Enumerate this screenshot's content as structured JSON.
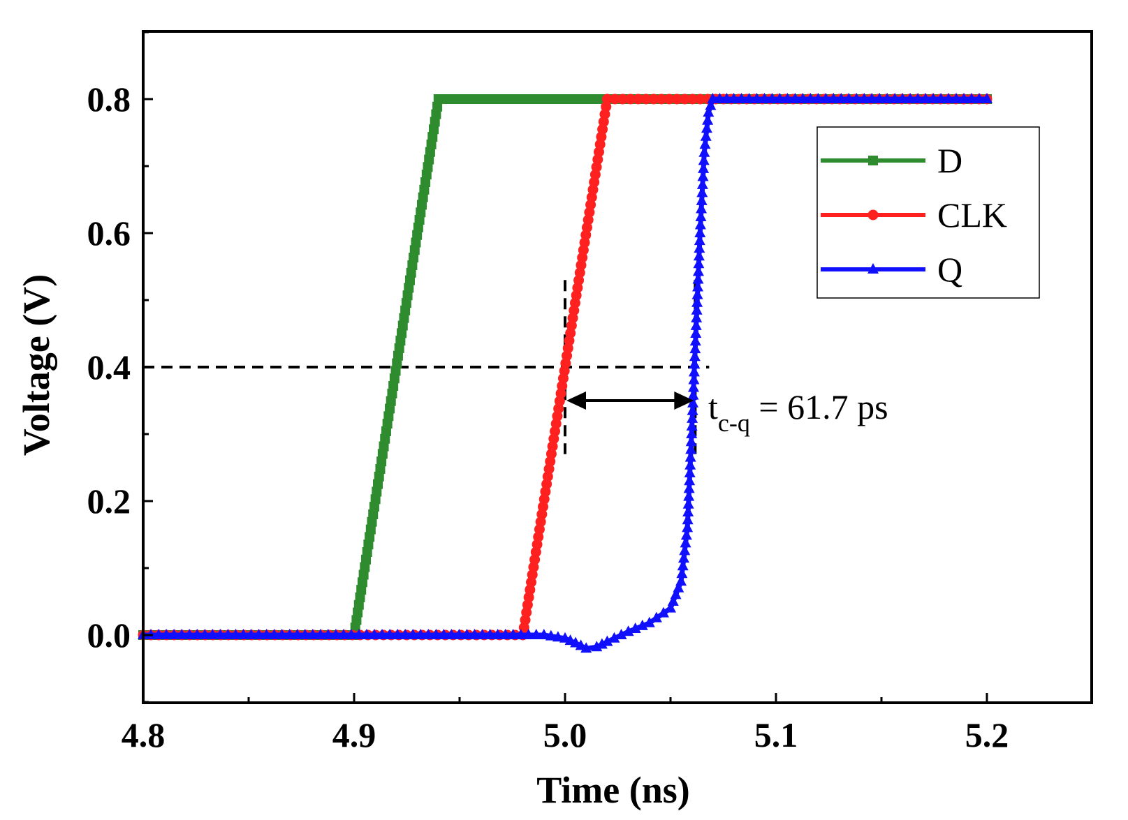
{
  "chart_data": {
    "type": "line",
    "title": "",
    "xlabel": "Time (ns)",
    "ylabel": "Voltage (V)",
    "xlim": [
      4.8,
      5.25
    ],
    "ylim": [
      -0.1,
      0.9
    ],
    "xticks": [
      4.8,
      4.9,
      5.0,
      5.1,
      5.2
    ],
    "xtick_labels": [
      "4.8",
      "4.9",
      "5.0",
      "5.1",
      "5.2"
    ],
    "yticks": [
      0.0,
      0.2,
      0.4,
      0.6,
      0.8
    ],
    "ytick_labels": [
      "0.0",
      "0.2",
      "0.4",
      "0.6",
      "0.8"
    ],
    "legend_position": "top-right",
    "series": [
      {
        "name": "D",
        "color": "#2e8b2e",
        "marker": "square",
        "x": [
          4.8,
          4.9,
          4.94,
          5.2
        ],
        "y": [
          0.0,
          0.0,
          0.8,
          0.8
        ]
      },
      {
        "name": "CLK",
        "color": "#ff2020",
        "marker": "circle",
        "x": [
          4.8,
          4.98,
          5.02,
          5.2
        ],
        "y": [
          0.0,
          0.0,
          0.8,
          0.8
        ]
      },
      {
        "name": "Q",
        "color": "#1010ff",
        "marker": "triangle",
        "x": [
          4.8,
          4.99,
          5.0,
          5.005,
          5.01,
          5.015,
          5.02,
          5.03,
          5.04,
          5.05,
          5.055,
          5.058,
          5.06,
          5.062,
          5.064,
          5.066,
          5.068,
          5.07,
          5.08,
          5.2
        ],
        "y": [
          0.0,
          0.0,
          -0.005,
          -0.012,
          -0.02,
          -0.018,
          -0.01,
          0.005,
          0.018,
          0.04,
          0.08,
          0.16,
          0.3,
          0.45,
          0.6,
          0.72,
          0.78,
          0.8,
          0.8,
          0.8
        ]
      }
    ],
    "reference_lines": {
      "level": 0.4,
      "clk_cross_x": 5.0,
      "q_cross_x": 5.0617
    },
    "annotation": {
      "symbol": "t",
      "subscript": "c-q",
      "text": " = 61.7 ps"
    }
  }
}
